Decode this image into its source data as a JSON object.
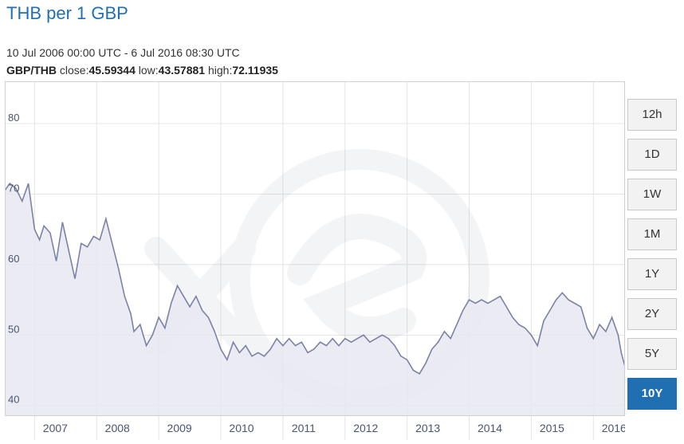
{
  "header": {
    "title": "THB per 1 GBP",
    "date_range": "10 Jul 2006 00:00 UTC - 6 Jul 2016 08:30 UTC",
    "pair": "GBP/THB",
    "close_label": "close:",
    "close": "45.59344",
    "low_label": "low:",
    "low": "43.57881",
    "high_label": "high:",
    "high": "72.11935"
  },
  "range_buttons": [
    {
      "label": "12h",
      "active": false
    },
    {
      "label": "1D",
      "active": false
    },
    {
      "label": "1W",
      "active": false
    },
    {
      "label": "1M",
      "active": false
    },
    {
      "label": "1Y",
      "active": false
    },
    {
      "label": "2Y",
      "active": false
    },
    {
      "label": "5Y",
      "active": false
    },
    {
      "label": "10Y",
      "active": true
    }
  ],
  "colors": {
    "line": "#7c82a6",
    "fill": "#e6e8f1",
    "grid": "#e4e4e4",
    "accent": "#1f6fb2",
    "tick_text": "#4a5570"
  },
  "chart_data": {
    "type": "area",
    "title": "THB per 1 GBP",
    "xlabel": "",
    "ylabel": "",
    "xlim": [
      2006.52,
      2016.51
    ],
    "ylim": [
      38.5,
      86
    ],
    "yticks": [
      40,
      50,
      60,
      70,
      80
    ],
    "xticks": [
      "2007",
      "2008",
      "2009",
      "2010",
      "2011",
      "2012",
      "2013",
      "2014",
      "2015",
      "2016"
    ],
    "grid": true,
    "x": [
      2006.52,
      2006.6,
      2006.7,
      2006.8,
      2006.9,
      2007.0,
      2007.08,
      2007.15,
      2007.25,
      2007.35,
      2007.45,
      2007.55,
      2007.65,
      2007.75,
      2007.85,
      2007.95,
      2008.05,
      2008.15,
      2008.25,
      2008.35,
      2008.45,
      2008.55,
      2008.6,
      2008.7,
      2008.8,
      2008.9,
      2009.0,
      2009.1,
      2009.2,
      2009.3,
      2009.4,
      2009.5,
      2009.6,
      2009.7,
      2009.8,
      2009.9,
      2010.0,
      2010.1,
      2010.2,
      2010.3,
      2010.4,
      2010.5,
      2010.6,
      2010.7,
      2010.8,
      2010.9,
      2011.0,
      2011.1,
      2011.2,
      2011.3,
      2011.4,
      2011.5,
      2011.6,
      2011.7,
      2011.8,
      2011.9,
      2012.0,
      2012.1,
      2012.2,
      2012.3,
      2012.4,
      2012.5,
      2012.6,
      2012.7,
      2012.8,
      2012.9,
      2013.0,
      2013.1,
      2013.2,
      2013.3,
      2013.4,
      2013.5,
      2013.6,
      2013.7,
      2013.8,
      2013.9,
      2014.0,
      2014.1,
      2014.2,
      2014.3,
      2014.4,
      2014.5,
      2014.6,
      2014.7,
      2014.8,
      2014.9,
      2015.0,
      2015.1,
      2015.2,
      2015.3,
      2015.4,
      2015.5,
      2015.6,
      2015.7,
      2015.8,
      2015.9,
      2016.0,
      2016.1,
      2016.2,
      2016.3,
      2016.4,
      2016.45,
      2016.51
    ],
    "series": [
      {
        "values": [
          70.5,
          71.5,
          70.8,
          69.0,
          71.5,
          65.0,
          63.5,
          65.5,
          64.5,
          60.5,
          66.0,
          62.0,
          58.0,
          63.0,
          62.5,
          64.0,
          63.5,
          66.5,
          63.0,
          59.5,
          55.5,
          53.0,
          50.5,
          51.5,
          48.5,
          50.0,
          52.5,
          51.0,
          54.5,
          57.0,
          55.5,
          54.0,
          55.5,
          53.5,
          52.5,
          50.5,
          48.0,
          46.5,
          49.0,
          47.5,
          48.5,
          47.0,
          47.5,
          47.0,
          48.0,
          49.5,
          48.5,
          49.5,
          48.5,
          49.0,
          47.5,
          48.0,
          49.0,
          48.5,
          49.5,
          48.5,
          49.5,
          49.0,
          49.5,
          50.0,
          49.0,
          49.5,
          50.0,
          49.5,
          48.5,
          47.0,
          46.5,
          45.0,
          44.5,
          46.0,
          48.0,
          49.0,
          50.5,
          49.5,
          51.5,
          53.5,
          55.0,
          54.5,
          55.0,
          54.5,
          55.0,
          55.5,
          54.0,
          52.5,
          51.5,
          51.0,
          50.0,
          48.5,
          52.0,
          53.5,
          55.0,
          56.0,
          55.0,
          54.5,
          54.0,
          51.0,
          49.5,
          51.5,
          50.5,
          52.5,
          50.0,
          47.5,
          45.5
        ]
      }
    ]
  }
}
